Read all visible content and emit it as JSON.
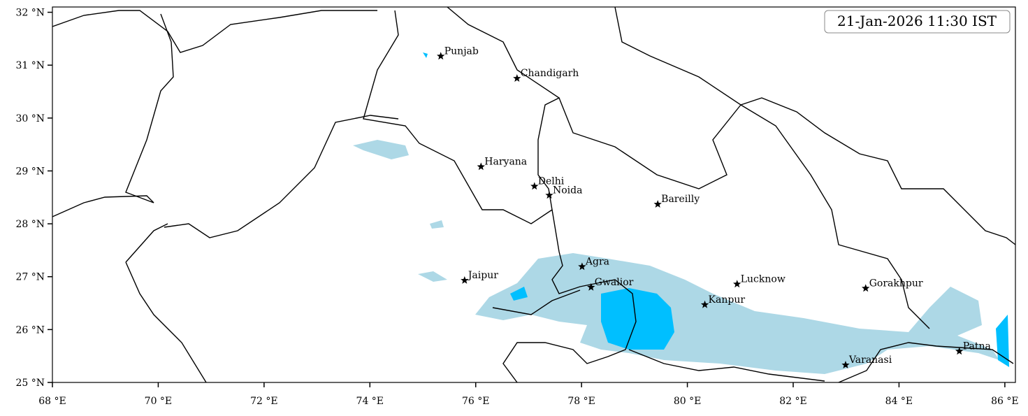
{
  "chart_data": {
    "type": "map",
    "timestamp": "21-Jan-2026 11:30 IST",
    "xlim": [
      68,
      86.2
    ],
    "ylim": [
      25,
      32.1
    ],
    "xticks": [
      {
        "value": 68,
        "label": "68 °E"
      },
      {
        "value": 70,
        "label": "70 °E"
      },
      {
        "value": 72,
        "label": "72 °E"
      },
      {
        "value": 74,
        "label": "74 °E"
      },
      {
        "value": 76,
        "label": "76 °E"
      },
      {
        "value": 78,
        "label": "78 °E"
      },
      {
        "value": 80,
        "label": "80 °E"
      },
      {
        "value": 82,
        "label": "82 °E"
      },
      {
        "value": 84,
        "label": "84 °E"
      },
      {
        "value": 86,
        "label": "86 °E"
      }
    ],
    "yticks": [
      {
        "value": 25,
        "label": "25 °N"
      },
      {
        "value": 26,
        "label": "26 °N"
      },
      {
        "value": 27,
        "label": "27 °N"
      },
      {
        "value": 28,
        "label": "28 °N"
      },
      {
        "value": 29,
        "label": "29 °N"
      },
      {
        "value": 30,
        "label": "30 °N"
      },
      {
        "value": 31,
        "label": "31 °N"
      },
      {
        "value": 32,
        "label": "32 °N"
      }
    ],
    "marker_color": "#000000",
    "cities": [
      {
        "name": "Punjab",
        "lon": 75.34,
        "lat": 31.17
      },
      {
        "name": "Chandigarh",
        "lon": 76.78,
        "lat": 30.75
      },
      {
        "name": "Haryana",
        "lon": 76.1,
        "lat": 29.08
      },
      {
        "name": "Delhi",
        "lon": 77.11,
        "lat": 28.71
      },
      {
        "name": "Noida",
        "lon": 77.39,
        "lat": 28.54
      },
      {
        "name": "Bareilly",
        "lon": 79.44,
        "lat": 28.37
      },
      {
        "name": "Agra",
        "lon": 78.01,
        "lat": 27.19
      },
      {
        "name": "Jaipur",
        "lon": 75.79,
        "lat": 26.93
      },
      {
        "name": "Gwalior",
        "lon": 78.18,
        "lat": 26.8
      },
      {
        "name": "Lucknow",
        "lon": 80.94,
        "lat": 26.86
      },
      {
        "name": "Kanpur",
        "lon": 80.33,
        "lat": 26.47
      },
      {
        "name": "Gorakhpur",
        "lon": 83.37,
        "lat": 26.78
      },
      {
        "name": "Varanasi",
        "lon": 82.99,
        "lat": 25.33
      },
      {
        "name": "Patna",
        "lon": 85.14,
        "lat": 25.59
      }
    ]
  }
}
